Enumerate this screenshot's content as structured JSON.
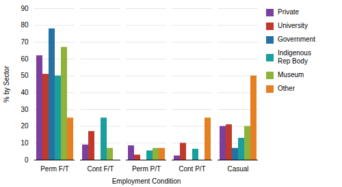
{
  "chart_data": {
    "type": "bar",
    "xlabel": "Employment Condition",
    "ylabel": "% by Sector",
    "categories": [
      "Perm F/T",
      "Cont F/T",
      "Perm P/T",
      "Cont P/T",
      "Casual"
    ],
    "series": [
      {
        "name": "Private",
        "color": "#7B3F9E",
        "values": [
          62,
          9,
          8.5,
          2.5,
          20
        ]
      },
      {
        "name": "University",
        "color": "#C0392B",
        "values": [
          51,
          17,
          3,
          10,
          21
        ]
      },
      {
        "name": "Government",
        "color": "#2471A3",
        "values": [
          78,
          0,
          0,
          0,
          7
        ]
      },
      {
        "name": "Indigenous\nRep Body",
        "color": "#1A9E9E",
        "values": [
          50,
          25,
          5.5,
          6.5,
          13
        ]
      },
      {
        "name": "Museum",
        "color": "#8DB33A",
        "values": [
          67,
          7,
          7,
          0,
          20
        ]
      },
      {
        "name": "Other",
        "color": "#E67E22",
        "values": [
          25,
          0,
          7,
          25,
          50
        ]
      }
    ],
    "ylim": [
      0,
      90
    ],
    "yticks": [
      0,
      10,
      20,
      30,
      40,
      50,
      60,
      70,
      80,
      90
    ],
    "grid": true,
    "legend": "right"
  }
}
